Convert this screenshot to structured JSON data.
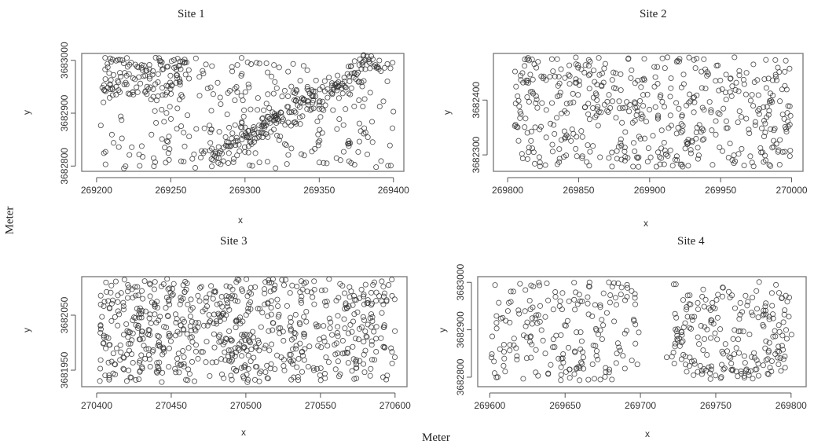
{
  "outer_labels": {
    "bottom": "Meter",
    "left": "Meter"
  },
  "chart_data": [
    {
      "type": "scatter",
      "title": "Site 1",
      "xlabel": "x",
      "ylabel": "y",
      "xlim": [
        269190,
        269407
      ],
      "ylim": [
        3682790,
        3683013
      ],
      "xticks": [
        269200,
        269250,
        269300,
        269350,
        269400
      ],
      "yticks": [
        3682800,
        3682900,
        3683000
      ],
      "marker": "open circle",
      "color": "#333333",
      "grid": false,
      "legend": "none",
      "n_points": 600,
      "seed": 11,
      "density": "concentrated along a diagonal band rising from lower-center (269280, 3682820) to upper-right (269390, 3683000); sparse near left-center"
    },
    {
      "type": "scatter",
      "title": "Site 2",
      "xlabel": "x",
      "ylabel": "y",
      "xlim": [
        269790,
        270008
      ],
      "ylim": [
        3682270,
        3682485
      ],
      "xticks": [
        269800,
        269850,
        269900,
        269950,
        270000
      ],
      "yticks": [
        3682300,
        3682400
      ],
      "marker": "open circle",
      "color": "#333333",
      "grid": false,
      "legend": "none",
      "n_points": 500,
      "seed": 22,
      "density": "roughly uniform across the plot"
    },
    {
      "type": "scatter",
      "title": "Site 3",
      "xlabel": "x",
      "ylabel": "y",
      "xlim": [
        270390,
        270608
      ],
      "ylim": [
        3681920,
        3682120
      ],
      "xticks": [
        270400,
        270450,
        270500,
        270550,
        270600
      ],
      "yticks": [
        3681950,
        3682050
      ],
      "marker": "open circle",
      "color": "#333333",
      "grid": false,
      "legend": "none",
      "n_points": 700,
      "seed": 33,
      "density": "dense and fairly uniform, slightly heavier on the left half"
    },
    {
      "type": "scatter",
      "title": "Site 4",
      "xlabel": "x",
      "ylabel": "y",
      "xlim": [
        269592,
        269810
      ],
      "ylim": [
        3682780,
        3683012
      ],
      "xticks": [
        269600,
        269650,
        269700,
        269750,
        269800
      ],
      "yticks": [
        3682800,
        3682900,
        3683000
      ],
      "marker": "open circle",
      "color": "#333333",
      "grid": false,
      "legend": "none",
      "n_points": 420,
      "seed": 44,
      "density": "two clusters separated by an empty vertical gap near x = 269700-269720; right cluster forms a ring around (269755, 3682880)"
    }
  ]
}
